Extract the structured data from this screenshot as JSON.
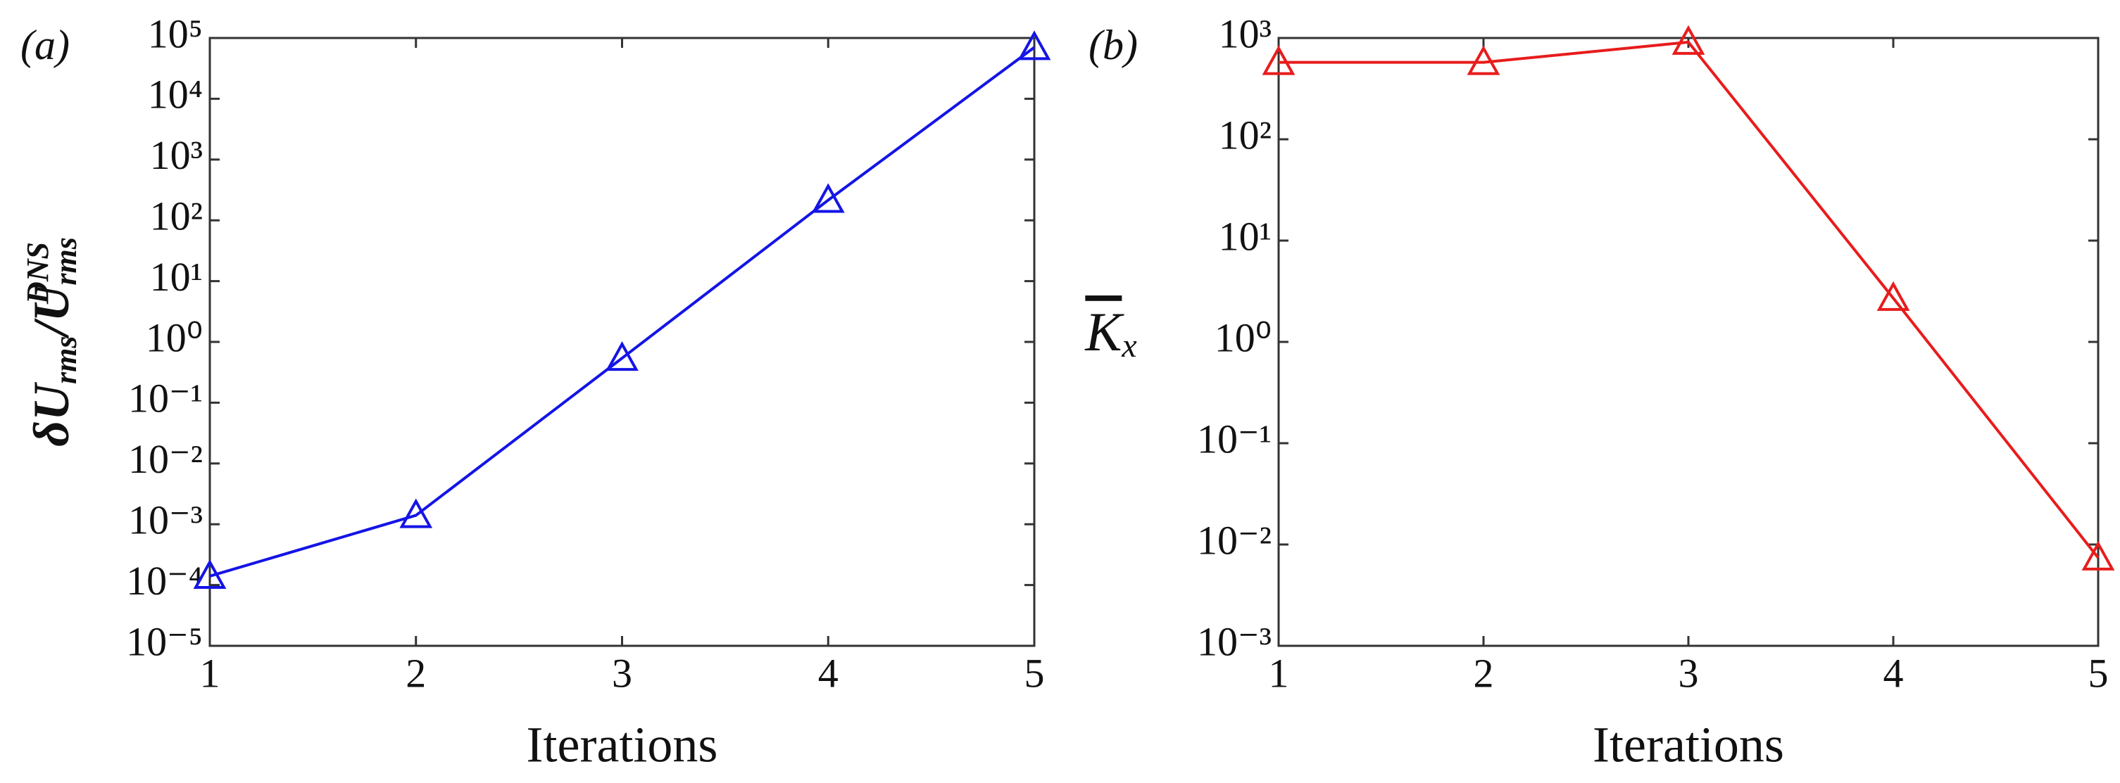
{
  "chart_data": [
    {
      "type": "line",
      "panel_label": "(a)",
      "xlabel": "Iterations",
      "ylabel": [
        "δU",
        "rms",
        "/U",
        "rms",
        "DNS"
      ],
      "x": [
        1,
        2,
        3,
        4,
        5
      ],
      "values": [
        0.00014,
        0.0014,
        0.54,
        215,
        70000
      ],
      "color": "#1414e6",
      "marker": "triangle",
      "yscale": "log",
      "xlim": [
        1,
        5
      ],
      "xticks": [
        1,
        2,
        3,
        4,
        5
      ],
      "ylim": [
        1e-05,
        100000
      ],
      "yticks": [
        {
          "value": 1e-05,
          "label": "10⁻⁵"
        },
        {
          "value": 0.0001,
          "label": "10⁻⁴"
        },
        {
          "value": 0.001,
          "label": "10⁻³"
        },
        {
          "value": 0.01,
          "label": "10⁻²"
        },
        {
          "value": 0.1,
          "label": "10⁻¹"
        },
        {
          "value": 1,
          "label": "10⁰"
        },
        {
          "value": 10,
          "label": "10¹"
        },
        {
          "value": 100,
          "label": "10²"
        },
        {
          "value": 1000,
          "label": "10³"
        },
        {
          "value": 10000,
          "label": "10⁴"
        },
        {
          "value": 100000,
          "label": "10⁵"
        }
      ]
    },
    {
      "type": "line",
      "panel_label": "(b)",
      "xlabel": "Iterations",
      "ylabel": [
        "K",
        "x"
      ],
      "x": [
        1,
        2,
        3,
        4,
        5
      ],
      "values": [
        575,
        575,
        910,
        2.7,
        0.0074
      ],
      "color": "#e81c1c",
      "marker": "triangle",
      "yscale": "log",
      "xlim": [
        1,
        5
      ],
      "xticks": [
        1,
        2,
        3,
        4,
        5
      ],
      "ylim": [
        0.001,
        1000
      ],
      "yticks": [
        {
          "value": 0.001,
          "label": "10⁻³"
        },
        {
          "value": 0.01,
          "label": "10⁻²"
        },
        {
          "value": 0.1,
          "label": "10⁻¹"
        },
        {
          "value": 1,
          "label": "10⁰"
        },
        {
          "value": 10,
          "label": "10¹"
        },
        {
          "value": 100,
          "label": "10²"
        },
        {
          "value": 1000,
          "label": "10³"
        }
      ]
    }
  ]
}
